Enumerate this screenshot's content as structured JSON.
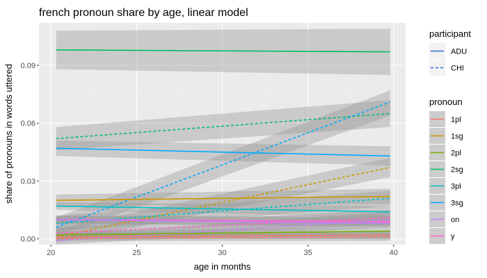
{
  "chart_data": {
    "type": "line",
    "title": "french pronoun share  by age, linear model",
    "xlabel": "age in months",
    "ylabel": "share of pronouns in words uttered",
    "xlim": [
      19.3,
      40.7
    ],
    "ylim": [
      -0.003,
      0.112
    ],
    "x_ticks": [
      20,
      25,
      30,
      35,
      40
    ],
    "x_tick_labels": [
      "20",
      "25",
      "30",
      "35",
      "40"
    ],
    "y_ticks": [
      0.0,
      0.03,
      0.06,
      0.09
    ],
    "y_tick_labels": [
      "0.00",
      "0.03",
      "0.06",
      "0.09"
    ],
    "grid": true,
    "legend_position": "right",
    "legend_participant": {
      "title": "participant",
      "items": [
        {
          "label": "ADU",
          "dash": "solid",
          "color": "#2b6bd6"
        },
        {
          "label": "CHI",
          "dash": "dashed",
          "color": "#2b6bd6"
        }
      ]
    },
    "legend_pronoun": {
      "title": "pronoun",
      "items": [
        {
          "label": "1pl",
          "color": "#F8766D"
        },
        {
          "label": "1sg",
          "color": "#CD9600"
        },
        {
          "label": "2pl",
          "color": "#7CAE00"
        },
        {
          "label": "2sg",
          "color": "#00BE67"
        },
        {
          "label": "3pl",
          "color": "#00BFC4"
        },
        {
          "label": "3sg",
          "color": "#00A9FF"
        },
        {
          "label": "on",
          "color": "#C77CFF"
        },
        {
          "label": "y",
          "color": "#FF61CC"
        }
      ]
    },
    "series": [
      {
        "pronoun": "2sg",
        "participant": "ADU",
        "color": "#00BE67",
        "x": [
          20.3,
          39.8
        ],
        "y": [
          0.098,
          0.097
        ],
        "band": [
          [
            0.088,
            0.108
          ],
          [
            0.085,
            0.109
          ]
        ]
      },
      {
        "pronoun": "2sg",
        "participant": "CHI",
        "color": "#00BE67",
        "x": [
          20.3,
          39.8
        ],
        "y": [
          0.052,
          0.065
        ],
        "band": [
          [
            0.046,
            0.058
          ],
          [
            0.058,
            0.072
          ]
        ]
      },
      {
        "pronoun": "3sg",
        "participant": "ADU",
        "color": "#00A9FF",
        "x": [
          20.3,
          39.8
        ],
        "y": [
          0.047,
          0.043
        ],
        "band": [
          [
            0.043,
            0.051
          ],
          [
            0.038,
            0.048
          ]
        ]
      },
      {
        "pronoun": "3sg",
        "participant": "CHI",
        "color": "#00A9FF",
        "x": [
          20.3,
          39.8
        ],
        "y": [
          0.006,
          0.071
        ],
        "band": [
          [
            0.001,
            0.011
          ],
          [
            0.064,
            0.077
          ]
        ]
      },
      {
        "pronoun": "1sg",
        "participant": "ADU",
        "color": "#CD9600",
        "x": [
          20.3,
          39.8
        ],
        "y": [
          0.02,
          0.022
        ],
        "band": [
          [
            0.017,
            0.023
          ],
          [
            0.018,
            0.026
          ]
        ]
      },
      {
        "pronoun": "1sg",
        "participant": "CHI",
        "color": "#CD9600",
        "x": [
          20.3,
          39.8
        ],
        "y": [
          0.001,
          0.037
        ],
        "band": [
          [
            -0.002,
            0.005
          ],
          [
            0.032,
            0.042
          ]
        ]
      },
      {
        "pronoun": "3pl",
        "participant": "ADU",
        "color": "#00BFC4",
        "x": [
          20.3,
          39.8
        ],
        "y": [
          0.017,
          0.014
        ],
        "band": [
          [
            0.015,
            0.019
          ],
          [
            0.011,
            0.017
          ]
        ]
      },
      {
        "pronoun": "3pl",
        "participant": "CHI",
        "color": "#00BFC4",
        "x": [
          20.3,
          39.8
        ],
        "y": [
          0.008,
          0.021
        ],
        "band": [
          [
            0.004,
            0.012
          ],
          [
            0.017,
            0.025
          ]
        ]
      },
      {
        "pronoun": "y",
        "participant": "ADU",
        "color": "#FF61CC",
        "x": [
          20.3,
          39.8
        ],
        "y": [
          0.01,
          0.009
        ],
        "band": [
          [
            0.008,
            0.012
          ],
          [
            0.007,
            0.012
          ]
        ]
      },
      {
        "pronoun": "y",
        "participant": "CHI",
        "color": "#FF61CC",
        "x": [
          20.3,
          39.8
        ],
        "y": [
          0.003,
          0.011
        ],
        "band": [
          [
            0.0,
            0.006
          ],
          [
            0.007,
            0.015
          ]
        ]
      },
      {
        "pronoun": "on",
        "participant": "ADU",
        "color": "#C77CFF",
        "x": [
          20.3,
          39.8
        ],
        "y": [
          0.01,
          0.008
        ],
        "band": [
          [
            0.008,
            0.012
          ],
          [
            0.006,
            0.011
          ]
        ]
      },
      {
        "pronoun": "on",
        "participant": "CHI",
        "color": "#C77CFF",
        "x": [
          20.3,
          39.8
        ],
        "y": [
          -0.001,
          0.01
        ],
        "band": [
          [
            -0.003,
            0.002
          ],
          [
            0.006,
            0.014
          ]
        ]
      },
      {
        "pronoun": "2pl",
        "participant": "ADU",
        "color": "#7CAE00",
        "x": [
          20.3,
          39.8
        ],
        "y": [
          0.002,
          0.004
        ],
        "band": [
          [
            0.001,
            0.004
          ],
          [
            0.002,
            0.006
          ]
        ]
      },
      {
        "pronoun": "2pl",
        "participant": "CHI",
        "color": "#7CAE00",
        "x": [
          20.3,
          39.8
        ],
        "y": [
          0.001,
          0.002
        ],
        "band": [
          [
            0.0,
            0.003
          ],
          [
            0.0,
            0.004
          ]
        ]
      },
      {
        "pronoun": "1pl",
        "participant": "ADU",
        "color": "#F8766D",
        "x": [
          20.3,
          39.8
        ],
        "y": [
          0.001,
          0.002
        ],
        "band": [
          [
            0.0,
            0.003
          ],
          [
            0.0,
            0.004
          ]
        ]
      },
      {
        "pronoun": "1pl",
        "participant": "CHI",
        "color": "#F8766D",
        "x": [
          20.3,
          39.8
        ],
        "y": [
          0.0,
          0.001
        ],
        "band": [
          [
            -0.001,
            0.002
          ],
          [
            -0.001,
            0.003
          ]
        ]
      }
    ]
  }
}
